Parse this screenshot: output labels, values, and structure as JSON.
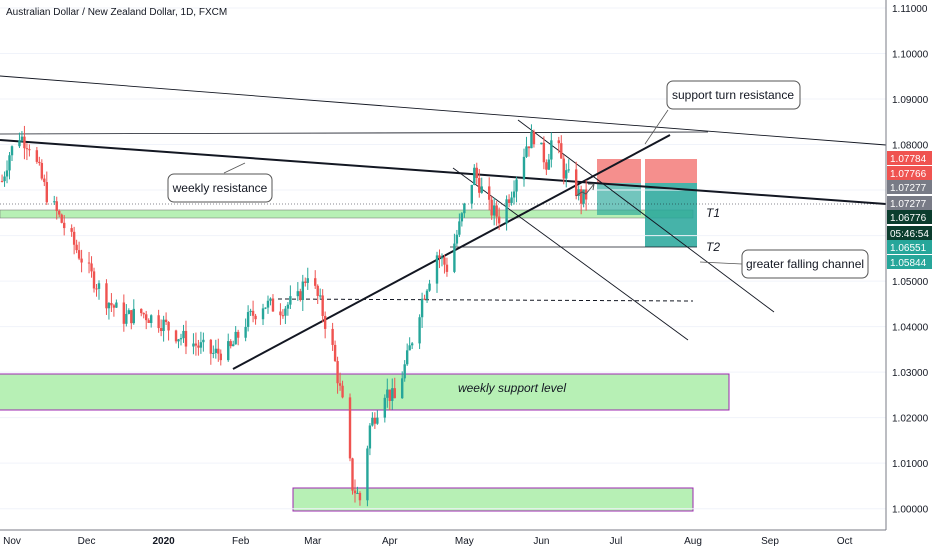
{
  "header": {
    "title": "Australian Dollar / New Zealand Dollar, 1D, FXCM"
  },
  "colors": {
    "up": "#26a69a",
    "down": "#ef5350",
    "zone_fill": "#b7f0b5",
    "zone_border": "#9c27b0",
    "target_fill": "#26a69a",
    "stop_fill": "#ef5350",
    "axis": "#787b86"
  },
  "chart_data": {
    "type": "candlestick",
    "title": "Australian Dollar / New Zealand Dollar, 1D, FXCM",
    "ylim": [
      0.995,
      1.115
    ],
    "x_labels": [
      "Nov",
      "Dec",
      "2020",
      "Feb",
      "Mar",
      "Apr",
      "May",
      "Jun",
      "Jul",
      "Aug",
      "Sep",
      "Oct"
    ],
    "y_ticks": [
      1.0,
      1.01,
      1.02,
      1.03,
      1.04,
      1.05,
      1.06,
      1.07,
      1.08,
      1.09,
      1.1,
      1.11
    ],
    "y_tick_labels": [
      "1.00000",
      "1.01000",
      "1.02000",
      "1.03000",
      "1.04000",
      "1.05000",
      "1.06000",
      "1.07000",
      "1.08000",
      "1.09000",
      "1.10000",
      "1.11000"
    ],
    "price_labels": [
      {
        "text": "1.07784",
        "value": 1.07784,
        "color": "#ef5350"
      },
      {
        "text": "1.07766",
        "value": 1.07766,
        "color": "#ef5350"
      },
      {
        "text": "1.07277",
        "value": 1.07277,
        "color": "#787b86"
      },
      {
        "text": "1.07277",
        "value": 1.07277,
        "color": "#787b86"
      },
      {
        "text": "1.06776",
        "value": 1.06776,
        "color": "#0b3d2e"
      },
      {
        "text": "05:46:54",
        "value": 1.06776,
        "color": "#0b3d2e"
      },
      {
        "text": "1.06551",
        "value": 1.06551,
        "color": "#26a69a"
      },
      {
        "text": "1.05844",
        "value": 1.05844,
        "color": "#26a69a"
      }
    ],
    "close_path": [
      [
        "2019-10-28",
        1.072
      ],
      [
        "2019-10-31",
        1.078
      ],
      [
        "2019-11-04",
        1.082
      ],
      [
        "2019-11-08",
        1.08
      ],
      [
        "2019-11-12",
        1.074
      ],
      [
        "2019-11-15",
        1.069
      ],
      [
        "2019-11-20",
        1.064
      ],
      [
        "2019-11-26",
        1.058
      ],
      [
        "2019-12-02",
        1.052
      ],
      [
        "2019-12-09",
        1.046
      ],
      [
        "2019-12-16",
        1.042
      ],
      [
        "2019-12-23",
        1.043
      ],
      [
        "2019-12-31",
        1.041
      ],
      [
        "2020-01-07",
        1.038
      ],
      [
        "2020-01-14",
        1.036
      ],
      [
        "2020-01-21",
        1.034
      ],
      [
        "2020-01-28",
        1.035
      ],
      [
        "2020-02-03",
        1.041
      ],
      [
        "2020-02-10",
        1.045
      ],
      [
        "2020-02-17",
        1.044
      ],
      [
        "2020-02-24",
        1.046
      ],
      [
        "2020-02-28",
        1.052
      ],
      [
        "2020-03-04",
        1.045
      ],
      [
        "2020-03-09",
        1.035
      ],
      [
        "2020-03-13",
        1.023
      ],
      [
        "2020-03-17",
        1.005
      ],
      [
        "2020-03-20",
        1.002
      ],
      [
        "2020-03-24",
        1.018
      ],
      [
        "2020-03-30",
        1.026
      ],
      [
        "2020-04-03",
        1.024
      ],
      [
        "2020-04-08",
        1.033
      ],
      [
        "2020-04-14",
        1.046
      ],
      [
        "2020-04-20",
        1.056
      ],
      [
        "2020-04-24",
        1.053
      ],
      [
        "2020-04-29",
        1.062
      ],
      [
        "2020-05-05",
        1.074
      ],
      [
        "2020-05-11",
        1.066
      ],
      [
        "2020-05-15",
        1.064
      ],
      [
        "2020-05-20",
        1.07
      ],
      [
        "2020-05-26",
        1.08
      ],
      [
        "2020-05-29",
        1.082
      ],
      [
        "2020-06-03",
        1.076
      ],
      [
        "2020-06-06",
        1.083
      ],
      [
        "2020-06-10",
        1.074
      ],
      [
        "2020-06-13",
        1.072
      ],
      [
        "2020-06-17",
        1.068
      ],
      [
        "2020-06-20",
        1.069
      ],
      [
        "2020-06-22",
        1.0678
      ]
    ],
    "annotations": {
      "weekly_resistance": "weekly resistance",
      "support_turn_resistance": "support turn resistance",
      "greater_falling_channel": "greater falling channel",
      "weekly_support_level": "weekly support level",
      "t1": "T1",
      "t2": "T2"
    }
  }
}
